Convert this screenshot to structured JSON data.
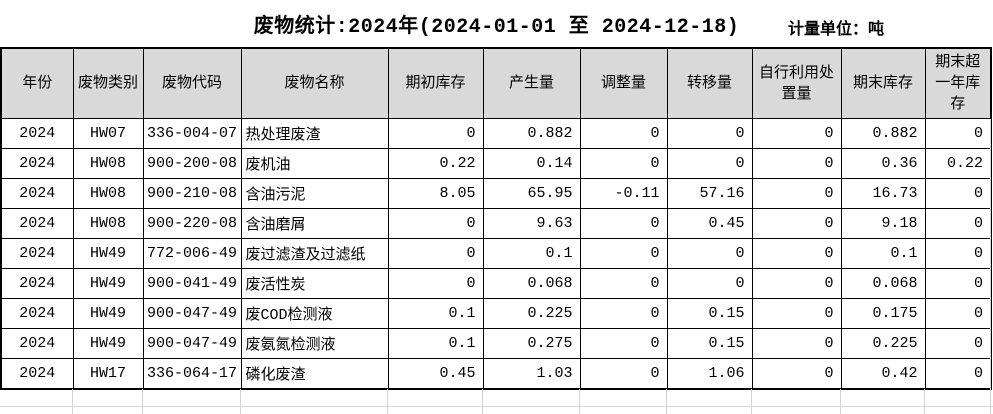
{
  "title": "废物统计:2024年(2024-01-01 至 2024-12-18)",
  "unit_label": "计量单位：吨",
  "colors": {
    "header_bg": "#d9d9d9",
    "table_border": "#000000",
    "gridline": "#d4d4d4",
    "background": "#ffffff"
  },
  "table": {
    "columns": [
      "年份",
      "废物类别",
      "废物代码",
      "废物名称",
      "期初库存",
      "产生量",
      "调整量",
      "转移量",
      "自行利用处置量",
      "期末库存",
      "期末超一年库存"
    ],
    "rows": [
      [
        "2024",
        "HW07",
        "336-004-07",
        "热处理废渣",
        "0",
        "0.882",
        "0",
        "0",
        "0",
        "0.882",
        "0"
      ],
      [
        "2024",
        "HW08",
        "900-200-08",
        "废机油",
        "0.22",
        "0.14",
        "0",
        "0",
        "0",
        "0.36",
        "0.22"
      ],
      [
        "2024",
        "HW08",
        "900-210-08",
        "含油污泥",
        "8.05",
        "65.95",
        "-0.11",
        "57.16",
        "0",
        "16.73",
        "0"
      ],
      [
        "2024",
        "HW08",
        "900-220-08",
        "含油磨屑",
        "0",
        "9.63",
        "0",
        "0.45",
        "0",
        "9.18",
        "0"
      ],
      [
        "2024",
        "HW49",
        "772-006-49",
        "废过滤渣及过滤纸",
        "0",
        "0.1",
        "0",
        "0",
        "0",
        "0.1",
        "0"
      ],
      [
        "2024",
        "HW49",
        "900-041-49",
        "废活性炭",
        "0",
        "0.068",
        "0",
        "0",
        "0",
        "0.068",
        "0"
      ],
      [
        "2024",
        "HW49",
        "900-047-49",
        "废COD检测液",
        "0.1",
        "0.225",
        "0",
        "0.15",
        "0",
        "0.175",
        "0"
      ],
      [
        "2024",
        "HW49",
        "900-047-49",
        "废氨氮检测液",
        "0.1",
        "0.275",
        "0",
        "0.15",
        "0",
        "0.225",
        "0"
      ],
      [
        "2024",
        "HW17",
        "336-064-17",
        "磷化废渣",
        "0.45",
        "1.03",
        "0",
        "1.06",
        "0",
        "0.42",
        "0"
      ]
    ]
  }
}
